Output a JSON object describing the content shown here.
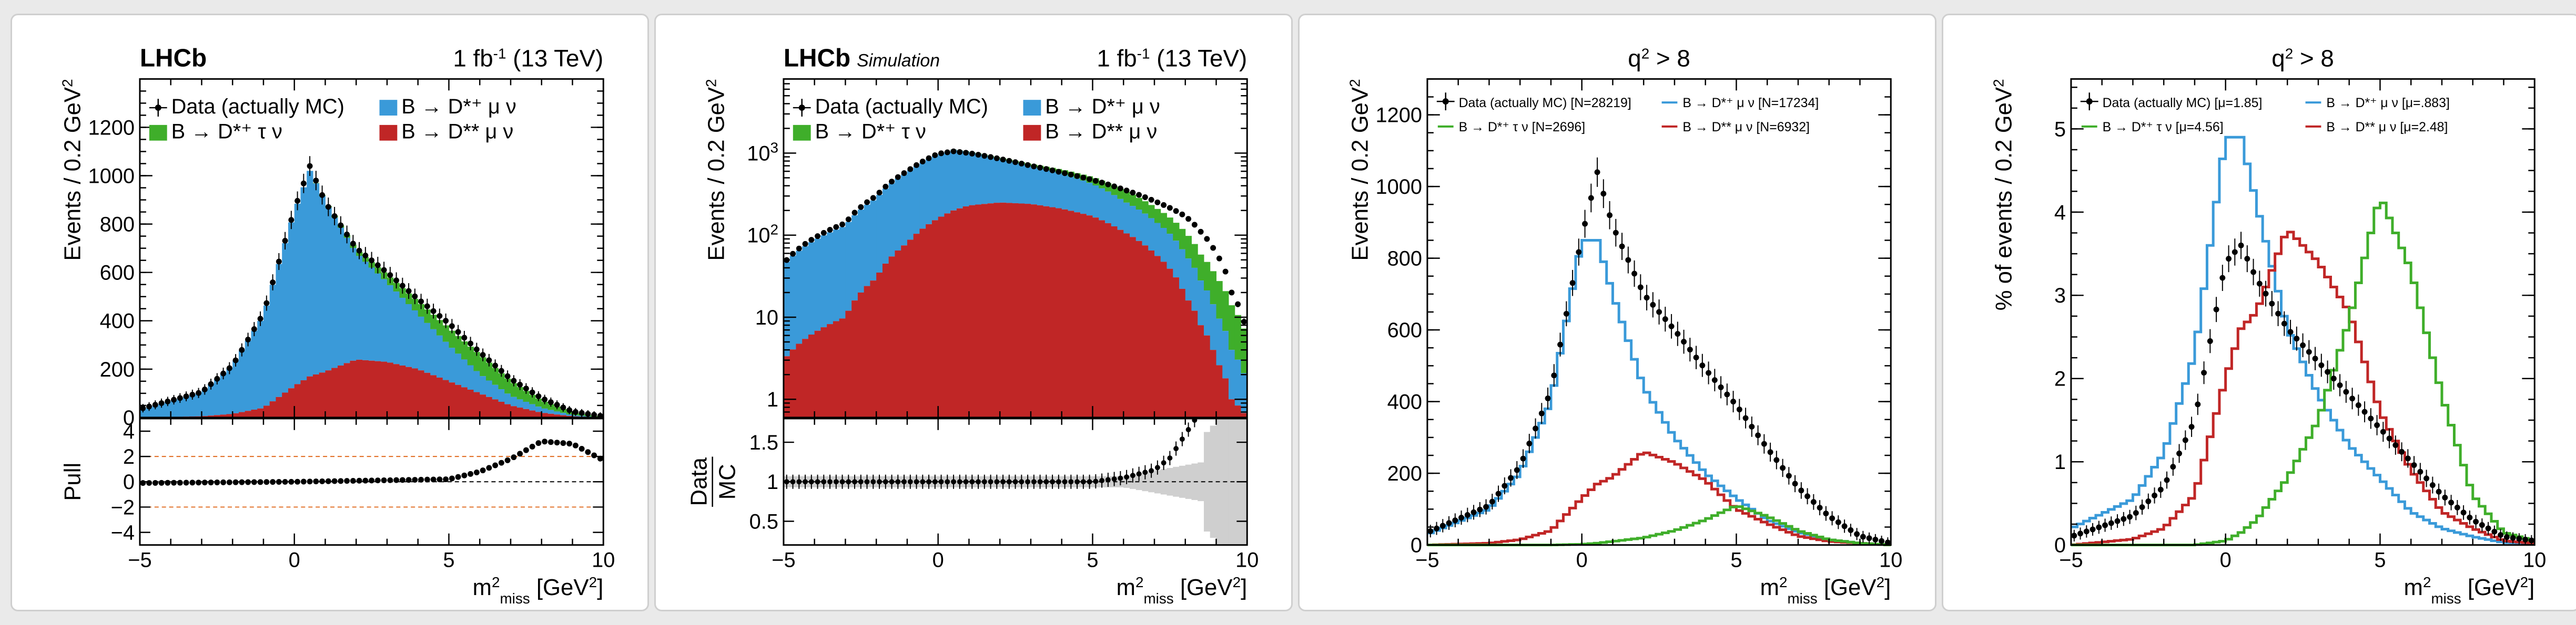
{
  "colors": {
    "dmu": "#3a9ad9",
    "dtau": "#3fae2a",
    "dss": "#c02626",
    "data": "#000000",
    "refline": "#e06a1e"
  },
  "panels": [
    {
      "brand": "LHCb",
      "sim_label": "",
      "lumi": "1 fb",
      "lumi_sup": "-1",
      "energy": " (13 TeV)",
      "q2_title": "",
      "ylabel": "Events / 0.2 GeV",
      "ylabel_sup": "2",
      "legend": {
        "data": "Data (actually MC)",
        "dmu": "B → D*⁺ μ ν",
        "dtau": "B → D*⁺ τ ν",
        "dss": "B → D** μ ν"
      },
      "xlabel_main": "m",
      "xlabel_sup": "2",
      "xlabel_sub": "miss",
      "xlabel_unit": " [GeV",
      "xlabel_unit_sup": "2",
      "xlabel_close": "]",
      "yticks": [
        "0",
        "200",
        "400",
        "600",
        "800",
        "1000",
        "1200"
      ],
      "xticks": [
        "−5",
        "0",
        "5",
        "10"
      ],
      "sub_ylabel": "Pull",
      "sub_yticks": [
        "4",
        "2",
        "0",
        "−2",
        "−4"
      ]
    },
    {
      "brand": "LHCb",
      "sim_label": "Simulation",
      "lumi": "1 fb",
      "lumi_sup": "-1",
      "energy": " (13 TeV)",
      "ylabel": "Events / 0.2 GeV",
      "ylabel_sup": "2",
      "legend": {
        "data": "Data (actually MC)",
        "dmu": "B → D*⁺ μ ν",
        "dtau": "B → D*⁺ τ ν",
        "dss": "B → D** μ ν"
      },
      "xlabel_main": "m",
      "xlabel_sup": "2",
      "xlabel_sub": "miss",
      "xlabel_unit": " [GeV",
      "xlabel_unit_sup": "2",
      "xlabel_close": "]",
      "yticks_log": [
        "1",
        "10",
        "10",
        "10"
      ],
      "yticks_log_sup": [
        "",
        "",
        "2",
        "3"
      ],
      "xticks": [
        "−5",
        "0",
        "5",
        "10"
      ],
      "sub_ylabel_num": "Data",
      "sub_ylabel_den": "MC",
      "sub_yticks": [
        "1.5",
        "1",
        "0.5"
      ]
    },
    {
      "q2_title": "q",
      "q2_sup": "2",
      "q2_rest": " > 8",
      "ylabel": "Events / 0.2 GeV",
      "ylabel_sup": "2",
      "legend": {
        "data": "Data (actually MC) [N=28219]",
        "dmu": "B → D*⁺ μ ν [N=17234]",
        "dtau": "B → D*⁺ τ ν [N=2696]",
        "dss": "B → D** μ ν [N=6932]"
      },
      "xlabel_main": "m",
      "xlabel_sup": "2",
      "xlabel_sub": "miss",
      "xlabel_unit": " [GeV",
      "xlabel_unit_sup": "2",
      "xlabel_close": "]",
      "yticks": [
        "0",
        "200",
        "400",
        "600",
        "800",
        "1000",
        "1200"
      ],
      "xticks": [
        "−5",
        "0",
        "5",
        "10"
      ]
    },
    {
      "q2_title": "q",
      "q2_sup": "2",
      "q2_rest": " > 8",
      "ylabel": "% of events / 0.2 GeV",
      "ylabel_sup": "2",
      "legend": {
        "data": "Data (actually MC) [μ=1.85]",
        "dmu": "B → D*⁺ μ ν [μ=.883]",
        "dtau": "B → D*⁺ τ ν [μ=4.56]",
        "dss": "B → D** μ ν [μ=2.48]"
      },
      "xlabel_main": "m",
      "xlabel_sup": "2",
      "xlabel_sub": "miss",
      "xlabel_unit": " [GeV",
      "xlabel_unit_sup": "2",
      "xlabel_close": "]",
      "yticks": [
        "0",
        "1",
        "2",
        "3",
        "4",
        "5"
      ],
      "xticks": [
        "−5",
        "0",
        "5",
        "10"
      ]
    }
  ],
  "chart_data": [
    {
      "type": "bar",
      "stacked": true,
      "title": "",
      "xlabel": "m²miss [GeV²]",
      "ylabel": "Events / 0.2 GeV²",
      "xlim": [
        -5,
        10
      ],
      "ylim": [
        0,
        1400
      ],
      "x_knots": [
        -5,
        -3,
        -2,
        -1,
        0,
        0.5,
        1,
        2,
        3,
        4,
        5,
        6,
        7,
        8,
        9,
        10
      ],
      "series": [
        {
          "name": "B → D** μ ν",
          "knots": [
            0,
            5,
            15,
            40,
            130,
            170,
            190,
            240,
            230,
            200,
            150,
            100,
            50,
            20,
            5,
            0
          ]
        },
        {
          "name": "B → D*⁺ μ ν",
          "knots": [
            30,
            100,
            200,
            380,
            720,
            850,
            700,
            440,
            330,
            230,
            150,
            80,
            40,
            20,
            5,
            0
          ]
        },
        {
          "name": "B → D*⁺ τ ν",
          "knots": [
            0,
            0,
            0,
            0,
            0,
            0,
            5,
            15,
            30,
            50,
            70,
            80,
            60,
            30,
            10,
            0
          ]
        },
        {
          "name": "Data (actually MC)",
          "knots": [
            35,
            105,
            215,
            430,
            860,
            1040,
            890,
            700,
            600,
            490,
            390,
            270,
            160,
            80,
            25,
            5
          ]
        }
      ],
      "pull": {
        "ylim": [
          -5,
          5
        ],
        "knots_x": [
          -5,
          0,
          5,
          6,
          7,
          8,
          9,
          10
        ],
        "knots": [
          -0.1,
          0,
          0.2,
          0.8,
          1.8,
          3.2,
          3.0,
          1.7
        ],
        "guide_lines": [
          2,
          -2
        ]
      }
    },
    {
      "type": "bar",
      "stacked": true,
      "log_y": true,
      "title": "",
      "xlabel": "m²miss [GeV²]",
      "ylabel": "Events / 0.2 GeV²",
      "xlim": [
        -5,
        10
      ],
      "ylim": [
        0.6,
        8000
      ],
      "x_knots": [
        -5,
        -3,
        -2,
        -1,
        0,
        0.5,
        1,
        2,
        3,
        4,
        5,
        6,
        7,
        8,
        8.5,
        9,
        9.5,
        10
      ],
      "series": [
        {
          "name": "B → D** μ ν",
          "knots": [
            3,
            10,
            30,
            80,
            160,
            200,
            230,
            250,
            240,
            210,
            170,
            110,
            60,
            18,
            8,
            3,
            1,
            0.6
          ]
        },
        {
          "name": "B → D*⁺ μ ν",
          "knots": [
            40,
            120,
            250,
            500,
            800,
            900,
            800,
            600,
            450,
            350,
            250,
            150,
            90,
            40,
            20,
            8,
            3,
            1
          ]
        },
        {
          "name": "B → D*⁺ τ ν",
          "knots": [
            0,
            0,
            0,
            1,
            2,
            4,
            10,
            25,
            45,
            70,
            90,
            90,
            70,
            50,
            30,
            20,
            10,
            4
          ]
        },
        {
          "name": "Data (actually MC)",
          "knots": [
            45,
            140,
            300,
            600,
            980,
            1050,
            1000,
            850,
            700,
            580,
            470,
            360,
            260,
            170,
            110,
            60,
            20,
            6
          ]
        }
      ],
      "ratio": {
        "ylim": [
          0.2,
          1.8
        ],
        "knots_x": [
          -5,
          0,
          5,
          6,
          7,
          7.5,
          8,
          8.5,
          9,
          10
        ],
        "knots": [
          1.0,
          1.0,
          1.0,
          1.05,
          1.15,
          1.3,
          1.6,
          1.9,
          2.2,
          2.5
        ]
      }
    },
    {
      "type": "line",
      "title": "q² > 8",
      "xlabel": "m²miss [GeV²]",
      "ylabel": "Events / 0.2 GeV²",
      "xlim": [
        -5,
        10
      ],
      "ylim": [
        0,
        1300
      ],
      "x_knots": [
        -5,
        -3,
        -2,
        -1,
        0,
        0.5,
        1,
        2,
        3,
        4,
        5,
        6,
        7,
        8,
        9,
        10
      ],
      "series": [
        {
          "name": "Data (actually MC) [N=28219]",
          "knots": [
            35,
            110,
            220,
            430,
            860,
            1040,
            890,
            700,
            600,
            490,
            390,
            270,
            160,
            80,
            25,
            5
          ]
        },
        {
          "name": "B → D*⁺ μ ν [N=17234]",
          "knots": [
            30,
            100,
            200,
            400,
            850,
            850,
            700,
            440,
            300,
            200,
            130,
            70,
            35,
            15,
            5,
            0
          ]
        },
        {
          "name": "B → D*⁺ τ ν [N=2696]",
          "knots": [
            0,
            0,
            0,
            0,
            2,
            5,
            10,
            20,
            40,
            70,
            110,
            80,
            40,
            15,
            5,
            0
          ]
        },
        {
          "name": "B → D** μ ν [N=6932]",
          "knots": [
            0,
            5,
            15,
            40,
            130,
            170,
            190,
            260,
            230,
            180,
            100,
            60,
            25,
            10,
            5,
            0
          ]
        }
      ]
    },
    {
      "type": "line",
      "title": "q² > 8",
      "xlabel": "m²miss [GeV²]",
      "ylabel": "% of events / 0.2 GeV²",
      "xlim": [
        -5,
        10
      ],
      "ylim": [
        0,
        5.6
      ],
      "x_knots": [
        -5,
        -3,
        -2,
        -1,
        0,
        0.5,
        1,
        2,
        3,
        4,
        5,
        6,
        7,
        8,
        9,
        10
      ],
      "series": [
        {
          "name": "Data (actually MC) [μ=1.85]",
          "knots": [
            0.1,
            0.35,
            0.7,
            1.5,
            3.4,
            3.6,
            3.2,
            2.6,
            2.2,
            1.8,
            1.4,
            1.0,
            0.6,
            0.3,
            0.1,
            0.05
          ]
        },
        {
          "name": "B → D*⁺ μ ν [μ=.883]",
          "knots": [
            0.2,
            0.55,
            1.1,
            2.3,
            4.9,
            4.9,
            4.1,
            2.6,
            1.8,
            1.2,
            0.8,
            0.4,
            0.2,
            0.1,
            0.03,
            0.02
          ]
        },
        {
          "name": "B → D*⁺ τ ν [μ=4.56]",
          "knots": [
            0,
            0,
            0,
            0,
            0.05,
            0.15,
            0.3,
            0.8,
            1.5,
            2.7,
            4.2,
            3.3,
            1.8,
            0.6,
            0.15,
            0.05
          ]
        },
        {
          "name": "B → D** μ ν [μ=2.48]",
          "knots": [
            0,
            0.07,
            0.2,
            0.6,
            2.0,
            2.6,
            2.8,
            3.8,
            3.4,
            2.8,
            1.6,
            0.9,
            0.4,
            0.2,
            0.05,
            0.02
          ]
        }
      ]
    }
  ]
}
